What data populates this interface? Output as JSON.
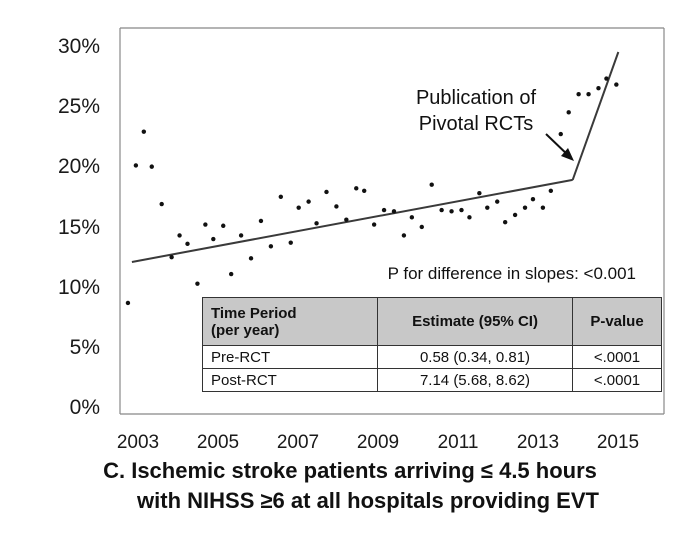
{
  "chart_data": {
    "type": "scatter",
    "title": "",
    "xlabel": "",
    "ylabel": "",
    "xlim": [
      2002.7,
      2016.4
    ],
    "ylim": [
      0,
      30
    ],
    "y_ticks": [
      "30%",
      "25%",
      "20%",
      "15%",
      "10%",
      "5%",
      "0%"
    ],
    "x_ticks": [
      "2003",
      "2005",
      "2007",
      "2009",
      "2011",
      "2013",
      "2015"
    ],
    "grid": false,
    "legend": "none",
    "points": [
      [
        2002.9,
        9.2
      ],
      [
        2003.1,
        20.6
      ],
      [
        2003.3,
        23.4
      ],
      [
        2003.5,
        20.5
      ],
      [
        2003.75,
        17.4
      ],
      [
        2004.0,
        13.0
      ],
      [
        2004.2,
        14.8
      ],
      [
        2004.4,
        14.1
      ],
      [
        2004.65,
        10.8
      ],
      [
        2004.85,
        15.7
      ],
      [
        2005.05,
        14.5
      ],
      [
        2005.3,
        15.6
      ],
      [
        2005.5,
        11.6
      ],
      [
        2005.75,
        14.8
      ],
      [
        2006.0,
        12.9
      ],
      [
        2006.25,
        16.0
      ],
      [
        2006.5,
        13.9
      ],
      [
        2006.75,
        18.0
      ],
      [
        2007.0,
        14.2
      ],
      [
        2007.2,
        17.1
      ],
      [
        2007.45,
        17.6
      ],
      [
        2007.65,
        15.8
      ],
      [
        2007.9,
        18.4
      ],
      [
        2008.15,
        17.2
      ],
      [
        2008.4,
        16.1
      ],
      [
        2008.65,
        18.7
      ],
      [
        2008.85,
        18.5
      ],
      [
        2009.1,
        15.7
      ],
      [
        2009.35,
        16.9
      ],
      [
        2009.6,
        16.8
      ],
      [
        2009.85,
        14.8
      ],
      [
        2010.05,
        16.3
      ],
      [
        2010.3,
        15.5
      ],
      [
        2010.55,
        19.0
      ],
      [
        2010.8,
        16.9
      ],
      [
        2011.05,
        16.8
      ],
      [
        2011.3,
        16.9
      ],
      [
        2011.5,
        16.3
      ],
      [
        2011.75,
        18.3
      ],
      [
        2011.95,
        17.1
      ],
      [
        2012.2,
        17.6
      ],
      [
        2012.4,
        15.9
      ],
      [
        2012.65,
        16.5
      ],
      [
        2012.9,
        17.1
      ],
      [
        2013.1,
        17.8
      ],
      [
        2013.35,
        17.1
      ],
      [
        2013.55,
        18.5
      ],
      [
        2013.8,
        23.2
      ],
      [
        2014.0,
        25.0
      ],
      [
        2014.25,
        26.5
      ],
      [
        2014.5,
        26.5
      ],
      [
        2014.75,
        27.0
      ],
      [
        2014.95,
        27.8
      ],
      [
        2015.2,
        27.3
      ]
    ],
    "trend_lines": [
      {
        "segment": "pre",
        "points": [
          [
            2003.0,
            12.6
          ],
          [
            2014.1,
            19.4
          ]
        ]
      },
      {
        "segment": "post",
        "points": [
          [
            2014.1,
            19.4
          ],
          [
            2015.25,
            30.0
          ]
        ]
      }
    ],
    "annotations": {
      "pivotal_line1": "Publication of",
      "pivotal_line2": "Pivotal RCTs",
      "p_difference": "P for difference in slopes: <0.001"
    },
    "stats_table": {
      "headers": {
        "period_line1": "Time Period",
        "period_line2": "(per year)",
        "estimate": "Estimate (95% CI)",
        "pvalue": "P-value"
      },
      "rows": [
        {
          "period": "Pre-RCT",
          "estimate": "0.58 (0.34, 0.81)",
          "pvalue": "<.0001"
        },
        {
          "period": "Post-RCT",
          "estimate": "7.14 (5.68, 8.62)",
          "pvalue": "<.0001"
        }
      ]
    },
    "caption_line1": "C. Ischemic stroke patients arriving ≤ 4.5 hours",
    "caption_line2": "with NIHSS ≥6 at all hospitals providing EVT"
  }
}
